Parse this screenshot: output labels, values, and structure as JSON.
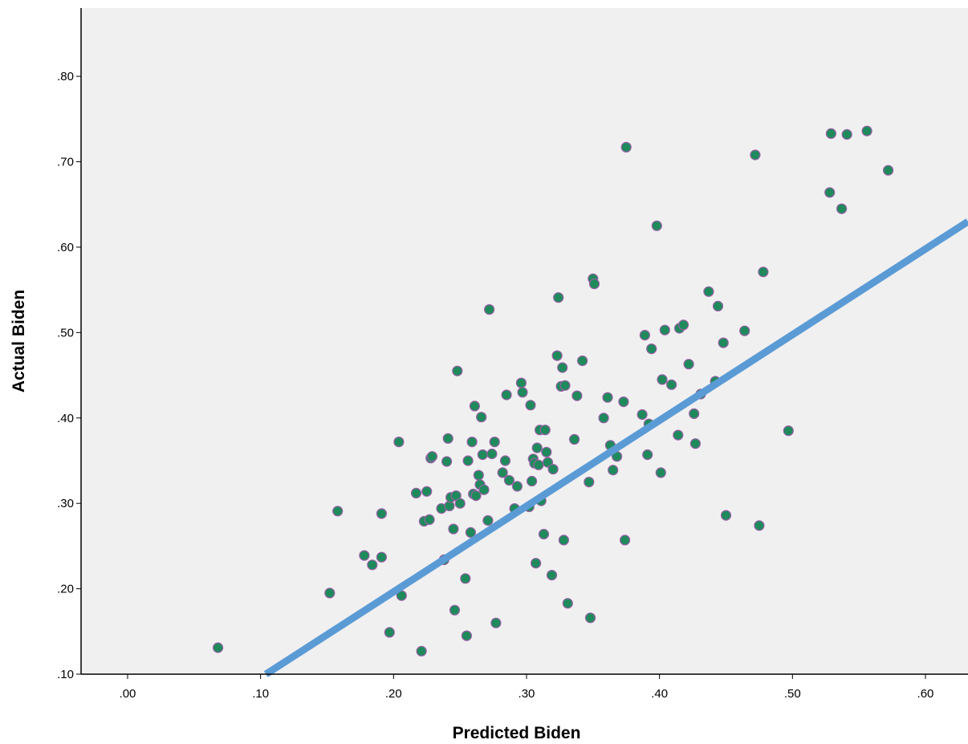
{
  "chart_data": {
    "type": "scatter",
    "title": "",
    "xlabel": "Predicted Biden",
    "ylabel": "Actual Biden",
    "xlim": [
      -0.035,
      0.632
    ],
    "ylim": [
      0.1,
      0.88
    ],
    "xticks": [
      0.0,
      0.1,
      0.2,
      0.3,
      0.4,
      0.5,
      0.6
    ],
    "xtick_labels": [
      ".00",
      ".10",
      ".20",
      ".30",
      ".40",
      ".50",
      ".60"
    ],
    "yticks": [
      0.1,
      0.2,
      0.3,
      0.4,
      0.5,
      0.6,
      0.7,
      0.8
    ],
    "ytick_labels": [
      ".10",
      ".20",
      ".30",
      ".40",
      ".50",
      ".60",
      ".70",
      ".80"
    ],
    "grid": false,
    "legend": "none",
    "colors": {
      "plot_background": "#f0f0f0",
      "point_fill": "#1f8a5b",
      "point_edge": "#9a5fa8",
      "reference_line": "#5b9bd5"
    },
    "reference_line": {
      "x": [
        0.104,
        0.632
      ],
      "y": [
        0.1,
        0.63
      ]
    },
    "points": [
      [
        0.068,
        0.131
      ],
      [
        0.152,
        0.195
      ],
      [
        0.158,
        0.291
      ],
      [
        0.178,
        0.239
      ],
      [
        0.184,
        0.228
      ],
      [
        0.191,
        0.237
      ],
      [
        0.191,
        0.288
      ],
      [
        0.197,
        0.149
      ],
      [
        0.204,
        0.372
      ],
      [
        0.206,
        0.192
      ],
      [
        0.217,
        0.312
      ],
      [
        0.221,
        0.127
      ],
      [
        0.223,
        0.279
      ],
      [
        0.225,
        0.314
      ],
      [
        0.227,
        0.281
      ],
      [
        0.228,
        0.353
      ],
      [
        0.229,
        0.355
      ],
      [
        0.236,
        0.294
      ],
      [
        0.238,
        0.234
      ],
      [
        0.24,
        0.349
      ],
      [
        0.241,
        0.376
      ],
      [
        0.242,
        0.297
      ],
      [
        0.243,
        0.307
      ],
      [
        0.245,
        0.27
      ],
      [
        0.246,
        0.175
      ],
      [
        0.247,
        0.309
      ],
      [
        0.248,
        0.455
      ],
      [
        0.25,
        0.3
      ],
      [
        0.254,
        0.212
      ],
      [
        0.255,
        0.145
      ],
      [
        0.256,
        0.35
      ],
      [
        0.258,
        0.266
      ],
      [
        0.259,
        0.372
      ],
      [
        0.26,
        0.311
      ],
      [
        0.261,
        0.414
      ],
      [
        0.262,
        0.309
      ],
      [
        0.264,
        0.333
      ],
      [
        0.265,
        0.322
      ],
      [
        0.266,
        0.401
      ],
      [
        0.267,
        0.357
      ],
      [
        0.268,
        0.316
      ],
      [
        0.271,
        0.28
      ],
      [
        0.272,
        0.527
      ],
      [
        0.274,
        0.358
      ],
      [
        0.276,
        0.372
      ],
      [
        0.277,
        0.16
      ],
      [
        0.282,
        0.336
      ],
      [
        0.284,
        0.35
      ],
      [
        0.285,
        0.427
      ],
      [
        0.287,
        0.327
      ],
      [
        0.291,
        0.294
      ],
      [
        0.293,
        0.32
      ],
      [
        0.296,
        0.441
      ],
      [
        0.297,
        0.43
      ],
      [
        0.302,
        0.296
      ],
      [
        0.303,
        0.415
      ],
      [
        0.304,
        0.326
      ],
      [
        0.305,
        0.352
      ],
      [
        0.306,
        0.347
      ],
      [
        0.307,
        0.23
      ],
      [
        0.308,
        0.365
      ],
      [
        0.309,
        0.345
      ],
      [
        0.31,
        0.386
      ],
      [
        0.311,
        0.303
      ],
      [
        0.313,
        0.264
      ],
      [
        0.314,
        0.386
      ],
      [
        0.315,
        0.36
      ],
      [
        0.316,
        0.348
      ],
      [
        0.319,
        0.216
      ],
      [
        0.32,
        0.34
      ],
      [
        0.323,
        0.473
      ],
      [
        0.324,
        0.541
      ],
      [
        0.326,
        0.437
      ],
      [
        0.327,
        0.459
      ],
      [
        0.328,
        0.257
      ],
      [
        0.329,
        0.438
      ],
      [
        0.331,
        0.183
      ],
      [
        0.336,
        0.375
      ],
      [
        0.338,
        0.426
      ],
      [
        0.342,
        0.467
      ],
      [
        0.347,
        0.325
      ],
      [
        0.348,
        0.166
      ],
      [
        0.35,
        0.563
      ],
      [
        0.351,
        0.557
      ],
      [
        0.358,
        0.4
      ],
      [
        0.361,
        0.424
      ],
      [
        0.363,
        0.368
      ],
      [
        0.365,
        0.339
      ],
      [
        0.368,
        0.355
      ],
      [
        0.373,
        0.419
      ],
      [
        0.374,
        0.257
      ],
      [
        0.375,
        0.717
      ],
      [
        0.387,
        0.404
      ],
      [
        0.389,
        0.497
      ],
      [
        0.391,
        0.357
      ],
      [
        0.392,
        0.393
      ],
      [
        0.394,
        0.481
      ],
      [
        0.398,
        0.625
      ],
      [
        0.401,
        0.336
      ],
      [
        0.402,
        0.445
      ],
      [
        0.404,
        0.503
      ],
      [
        0.409,
        0.439
      ],
      [
        0.414,
        0.38
      ],
      [
        0.415,
        0.505
      ],
      [
        0.418,
        0.509
      ],
      [
        0.422,
        0.463
      ],
      [
        0.426,
        0.405
      ],
      [
        0.427,
        0.37
      ],
      [
        0.431,
        0.428
      ],
      [
        0.437,
        0.548
      ],
      [
        0.442,
        0.443
      ],
      [
        0.444,
        0.531
      ],
      [
        0.448,
        0.488
      ],
      [
        0.45,
        0.286
      ],
      [
        0.464,
        0.502
      ],
      [
        0.472,
        0.708
      ],
      [
        0.475,
        0.274
      ],
      [
        0.478,
        0.571
      ],
      [
        0.497,
        0.385
      ],
      [
        0.528,
        0.664
      ],
      [
        0.529,
        0.733
      ],
      [
        0.537,
        0.645
      ],
      [
        0.541,
        0.732
      ],
      [
        0.556,
        0.736
      ],
      [
        0.572,
        0.69
      ]
    ]
  }
}
